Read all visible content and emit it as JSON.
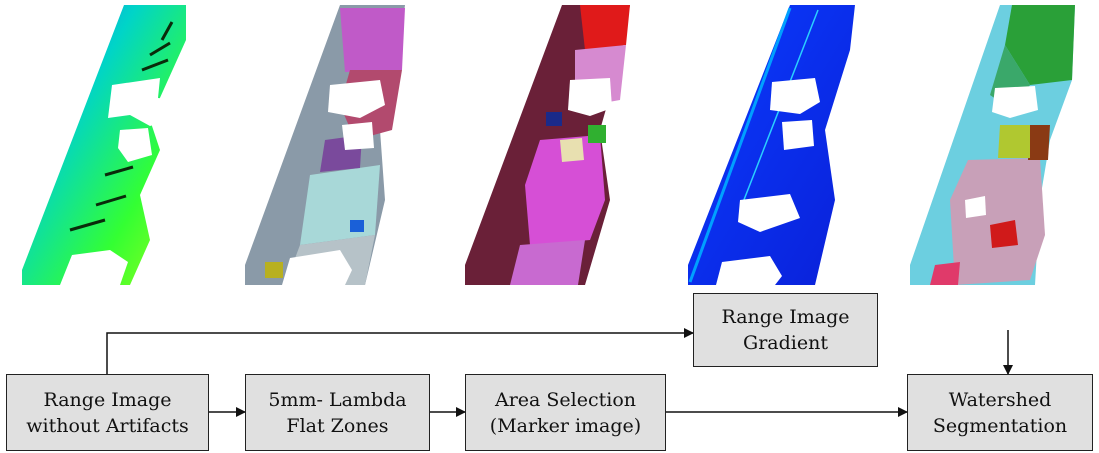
{
  "images": [
    {
      "name": "range-image-colormap",
      "colors": [
        "#2a7fff",
        "#00d0c0",
        "#4cff2a",
        "#b6ff1a",
        "#11d85a"
      ]
    },
    {
      "name": "flat-zones-segments",
      "colors": [
        "#8a9aa8",
        "#b24a6e",
        "#c98c74",
        "#a8d8d8",
        "#9e4fc8"
      ]
    },
    {
      "name": "area-selection-markers",
      "colors": [
        "#6a2038",
        "#d64fd6",
        "#c88ac8",
        "#e01a1a",
        "#1a2a8a"
      ]
    },
    {
      "name": "gradient-image",
      "colors": [
        "#0a28e6",
        "#0a3cff",
        "#00a0ff",
        "#0018b0",
        "#2ad0ff"
      ]
    },
    {
      "name": "watershed-result",
      "colors": [
        "#6ccfe0",
        "#2aa038",
        "#c8a0b8",
        "#8a3a14",
        "#d01a1a"
      ]
    }
  ],
  "boxes": {
    "range": {
      "lines": [
        "Range Image",
        "without Artifacts"
      ]
    },
    "lambda": {
      "lines": [
        "5mm- Lambda",
        "Flat Zones"
      ]
    },
    "area": {
      "lines": [
        "Area Selection",
        "(Marker image)"
      ]
    },
    "gradient": {
      "lines": [
        "Range Image",
        "Gradient"
      ]
    },
    "watershed": {
      "lines": [
        "Watershed",
        "Segmentation"
      ]
    }
  }
}
